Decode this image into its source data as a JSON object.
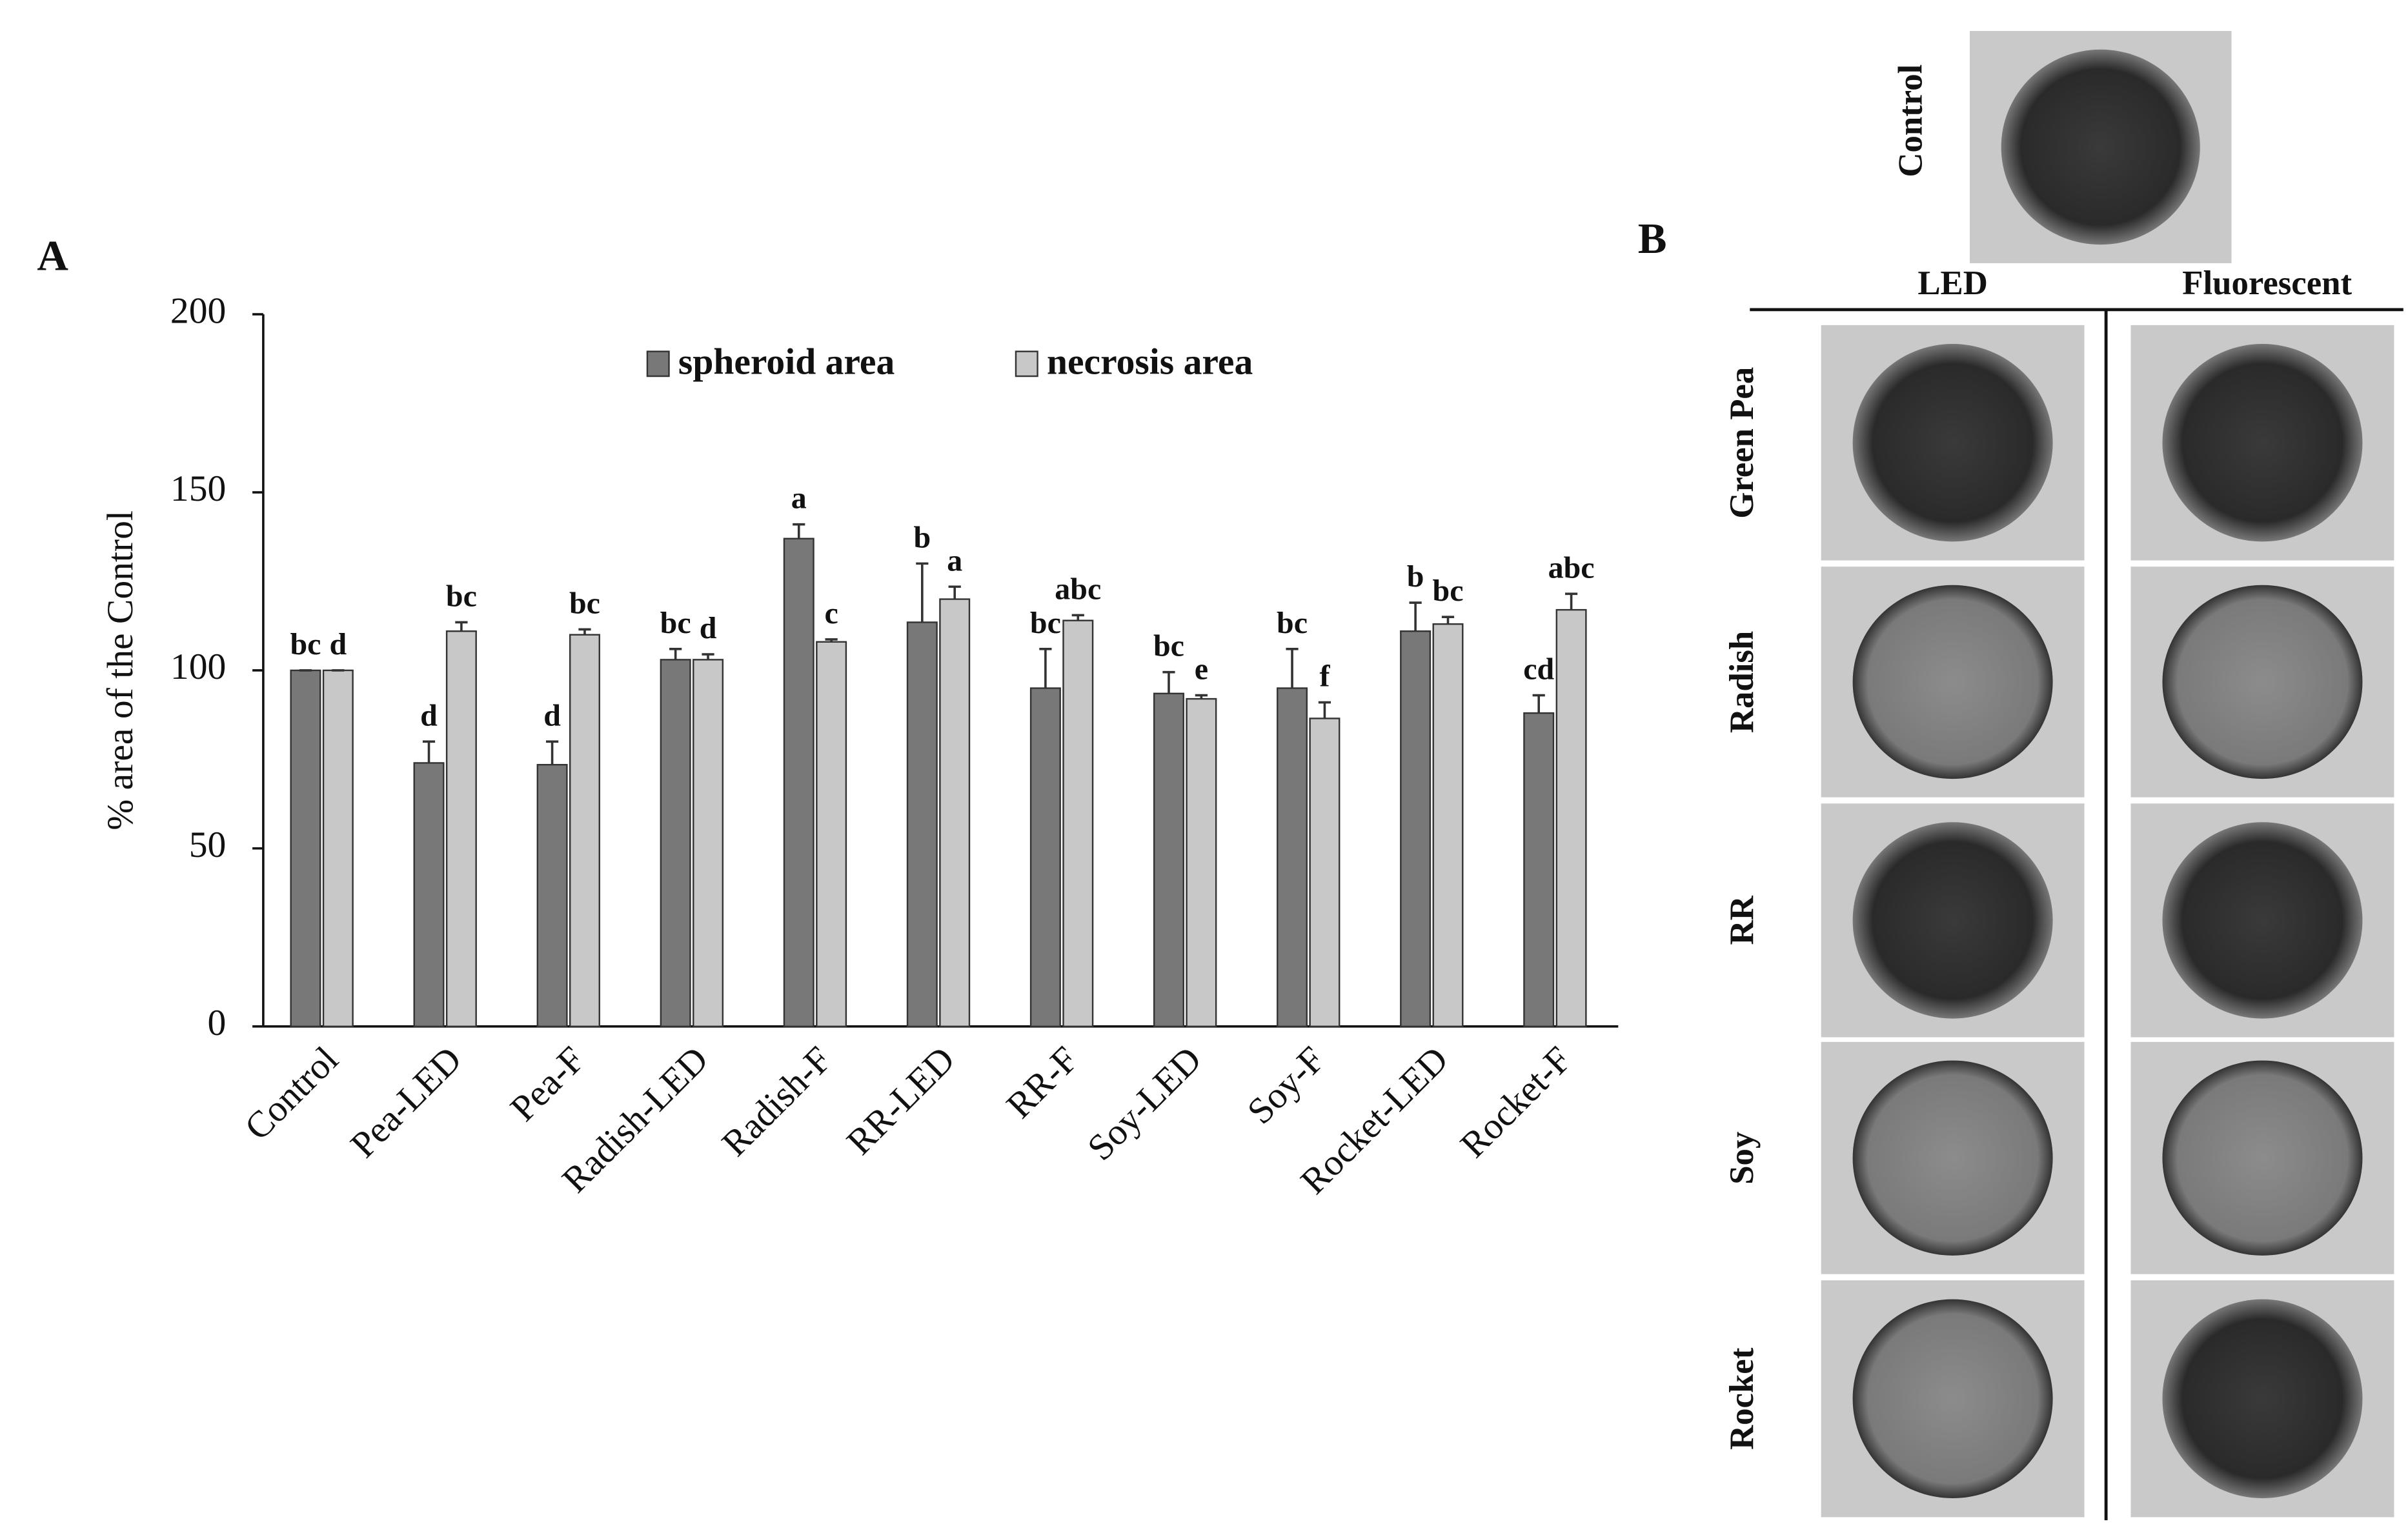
{
  "chart_data": {
    "type": "bar",
    "panel_label": "A",
    "ylabel": "% area of the Control",
    "categories": [
      "Control",
      "Pea-LED",
      "Pea-F",
      "Radish-LED",
      "Radish-F",
      "RR-LED",
      "RR-F",
      "Soy-LED",
      "Soy-F",
      "Rocket-LED",
      "Rocket-F"
    ],
    "series": [
      {
        "name": "spheroid area",
        "color": "#787878",
        "values": [
          100,
          74,
          73.5,
          103,
          137,
          113.5,
          95,
          93.5,
          95,
          111,
          88
        ],
        "errors": [
          0,
          6,
          6.5,
          3,
          4,
          16.5,
          11,
          6,
          11,
          8,
          5
        ],
        "letters": [
          "bc",
          "d",
          "d",
          "bc",
          "a",
          "b",
          "bc",
          "bc",
          "bc",
          "b",
          "cd"
        ]
      },
      {
        "name": "necrosis area",
        "color": "#c8c8c8",
        "values": [
          100,
          111,
          110,
          103,
          108,
          120,
          114,
          92,
          86.5,
          113,
          117
        ],
        "errors": [
          0,
          2.5,
          1.5,
          1.5,
          0.7,
          3.5,
          1.5,
          1,
          4.5,
          2,
          4.5
        ],
        "letters": [
          "d",
          "bc",
          "bc",
          "d",
          "c",
          "a",
          "abc",
          "e",
          "f",
          "bc",
          "abc"
        ]
      }
    ],
    "ylim": [
      0,
      200
    ],
    "yticks": [
      0,
      50,
      100,
      150,
      200
    ],
    "grid": false,
    "legend": "top"
  },
  "panel_b": {
    "label": "B",
    "control": "Control",
    "columns": [
      "LED",
      "Fluorescent"
    ],
    "rows": [
      "Green Pea",
      "Radish",
      "RR",
      "Soy",
      "Rocket"
    ]
  }
}
